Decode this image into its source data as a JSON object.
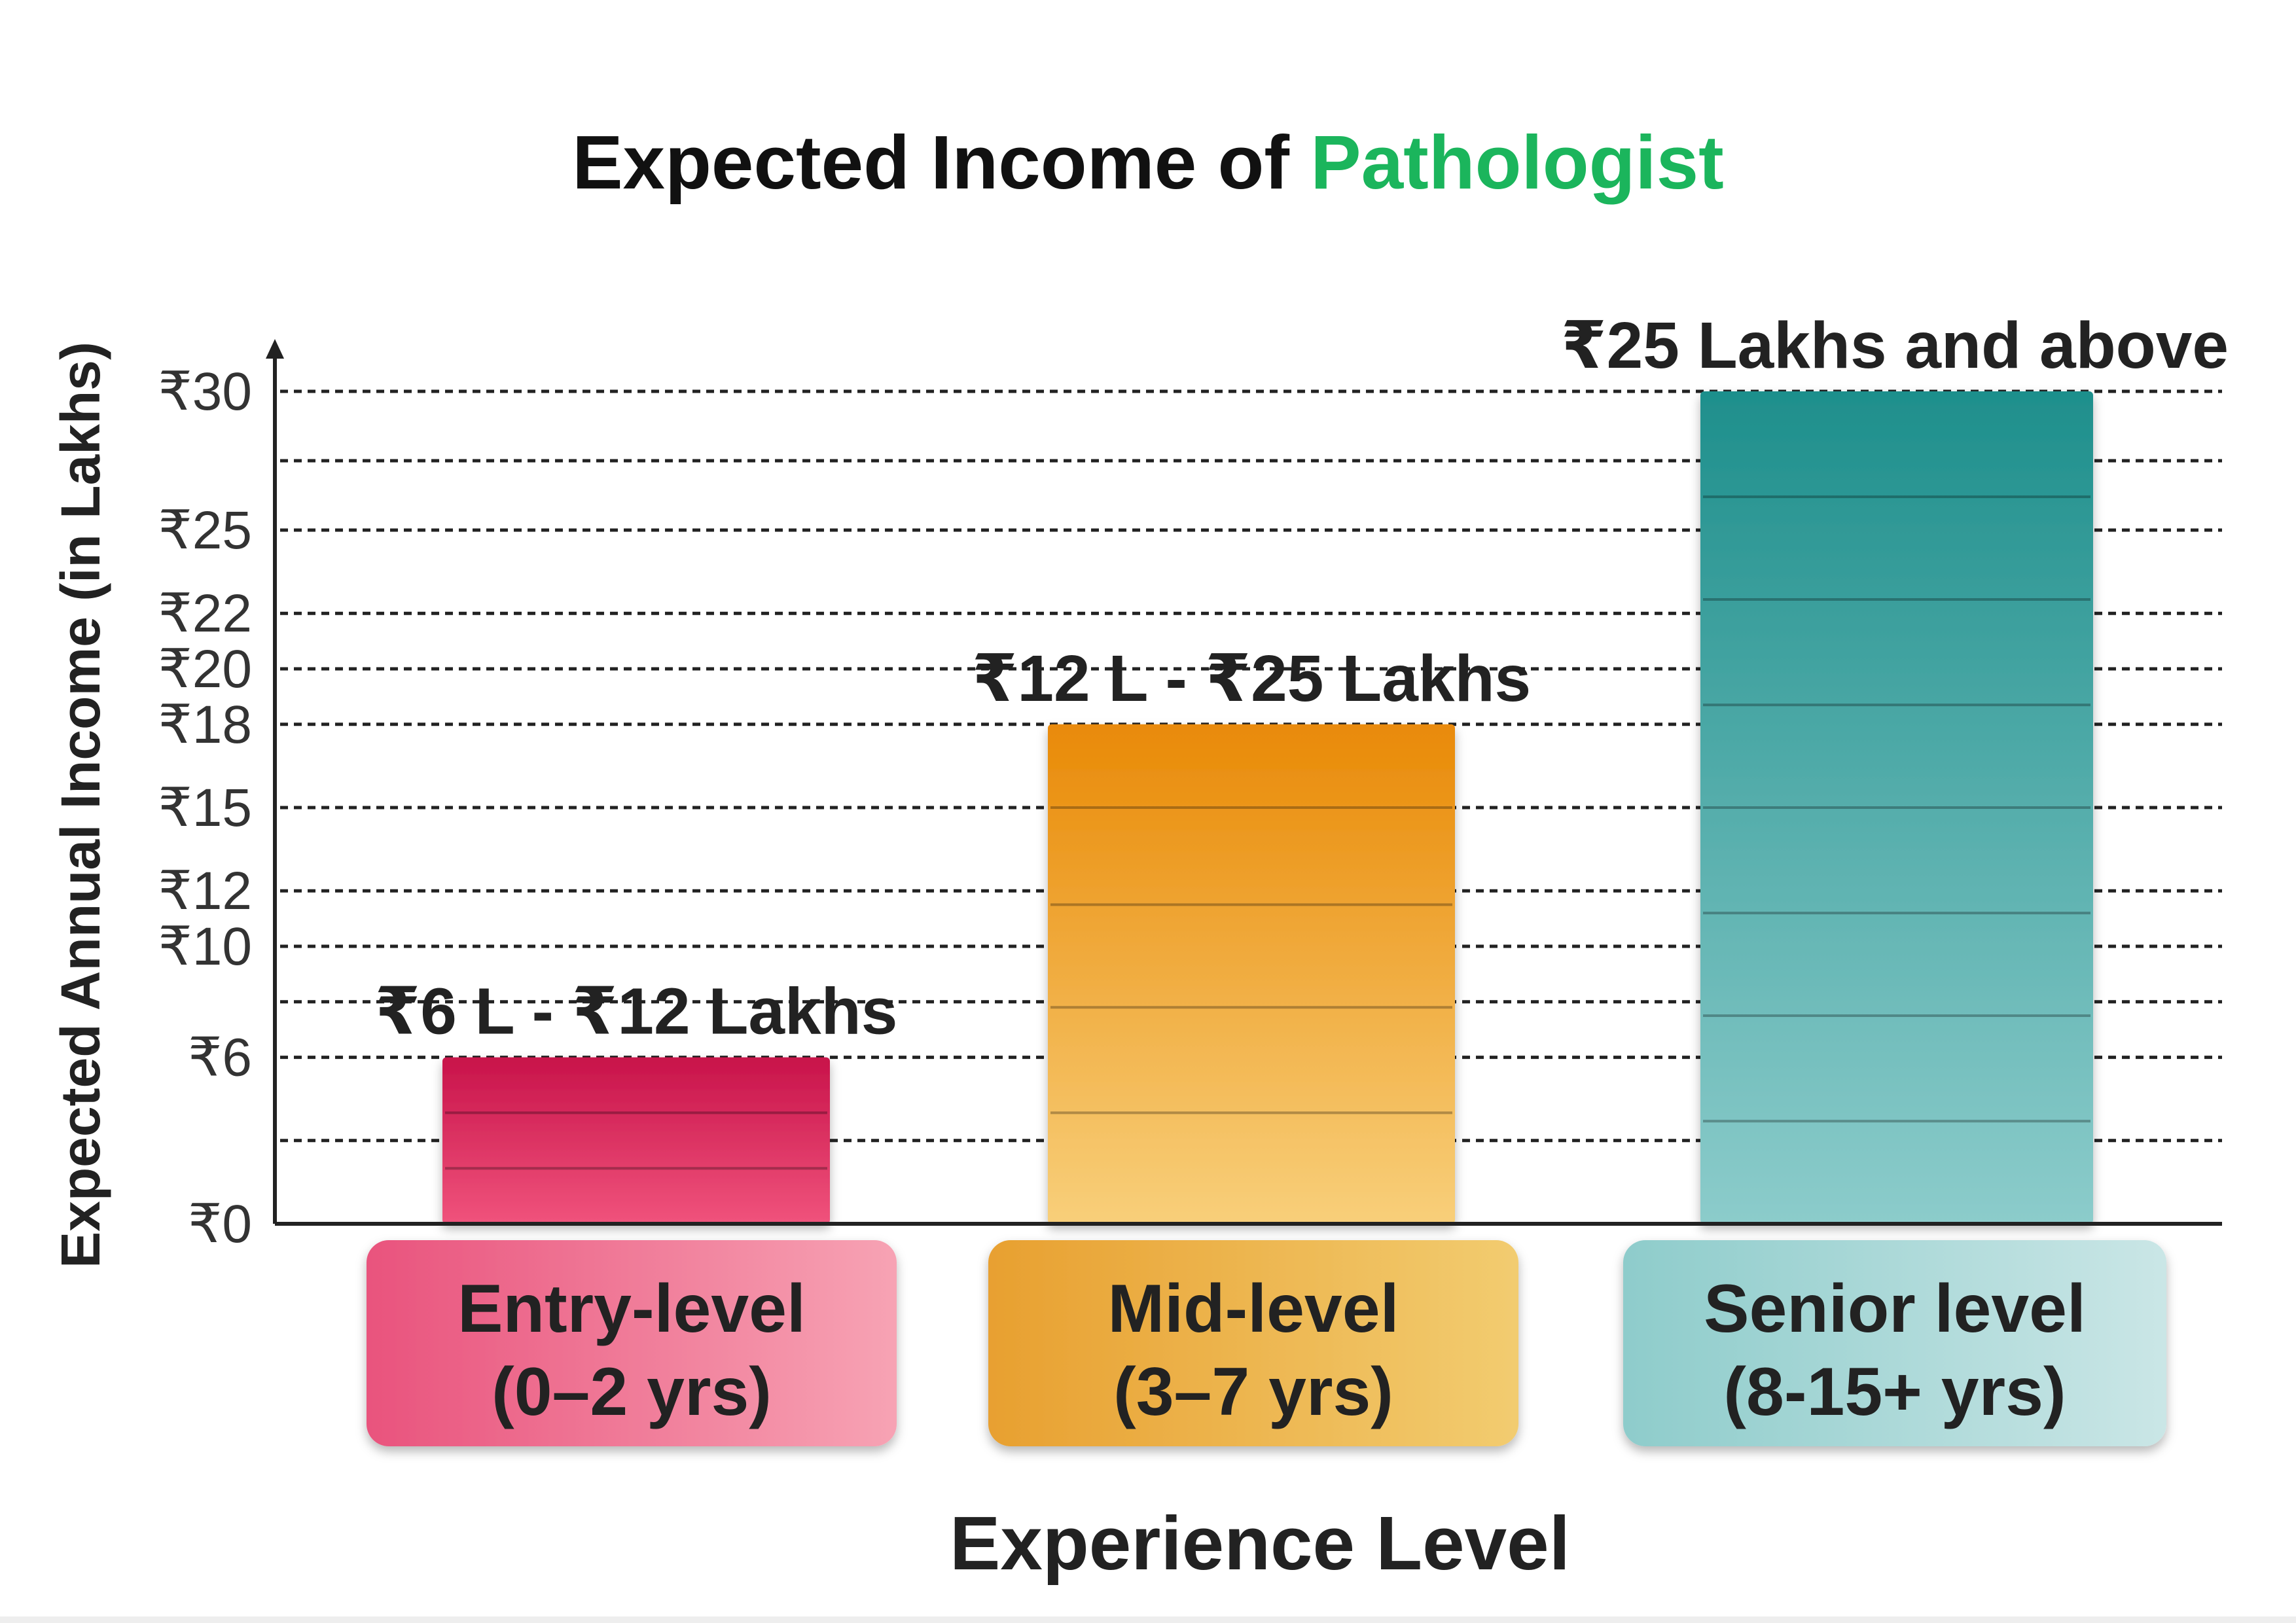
{
  "chart_data": {
    "type": "bar",
    "title": {
      "prefix": "Expected Income of ",
      "highlight": "Pathologist"
    },
    "xlabel": "Experience Level",
    "ylabel": "Expected Annual Income (in Lakhs)",
    "ylim": [
      0,
      30
    ],
    "grid": true,
    "grid_values": [
      3,
      6,
      8,
      10,
      12,
      15,
      18,
      20,
      22,
      25,
      27.5,
      30
    ],
    "y_ticks": [
      {
        "value": 0,
        "label": "₹0"
      },
      {
        "value": 6,
        "label": "₹6"
      },
      {
        "value": 10,
        "label": "₹10"
      },
      {
        "value": 12,
        "label": "₹12"
      },
      {
        "value": 15,
        "label": "₹15"
      },
      {
        "value": 18,
        "label": "₹18"
      },
      {
        "value": 20,
        "label": "₹20"
      },
      {
        "value": 22,
        "label": "₹22"
      },
      {
        "value": 25,
        "label": "₹25"
      },
      {
        "value": 30,
        "label": "₹30"
      }
    ],
    "categories": [
      {
        "line1": "Entry-level",
        "line2": "(0–2 yrs)"
      },
      {
        "line1": "Mid-level",
        "line2": "(3–7 yrs)"
      },
      {
        "line1": "Senior level",
        "line2": "(8-15+ yrs)"
      }
    ],
    "values": [
      6,
      18,
      30
    ],
    "data_labels": [
      "₹6 L - ₹12 Lakhs",
      "₹12 L - ₹25 Lakhs",
      "₹25 Lakhs and above"
    ],
    "bar_bands": [
      [
        2,
        4
      ],
      [
        4,
        7.8,
        11.5,
        15
      ],
      [
        3.7,
        7.5,
        11.2,
        15,
        18.7,
        22.5,
        26.2
      ]
    ],
    "colors": {
      "title": "#111111",
      "title_highlight": "#1bb55c",
      "bars": [
        [
          "#c8134a",
          "#f0537c"
        ],
        [
          "#e98a07",
          "#f8cf7a"
        ],
        [
          "#1e8f8c",
          "#8ccccb"
        ]
      ],
      "category_boxes": [
        [
          "#e9537d",
          "#f7a3b4"
        ],
        [
          "#e8a030",
          "#f2cc70"
        ],
        [
          "#8ecccb",
          "#cae6e6"
        ]
      ]
    }
  }
}
